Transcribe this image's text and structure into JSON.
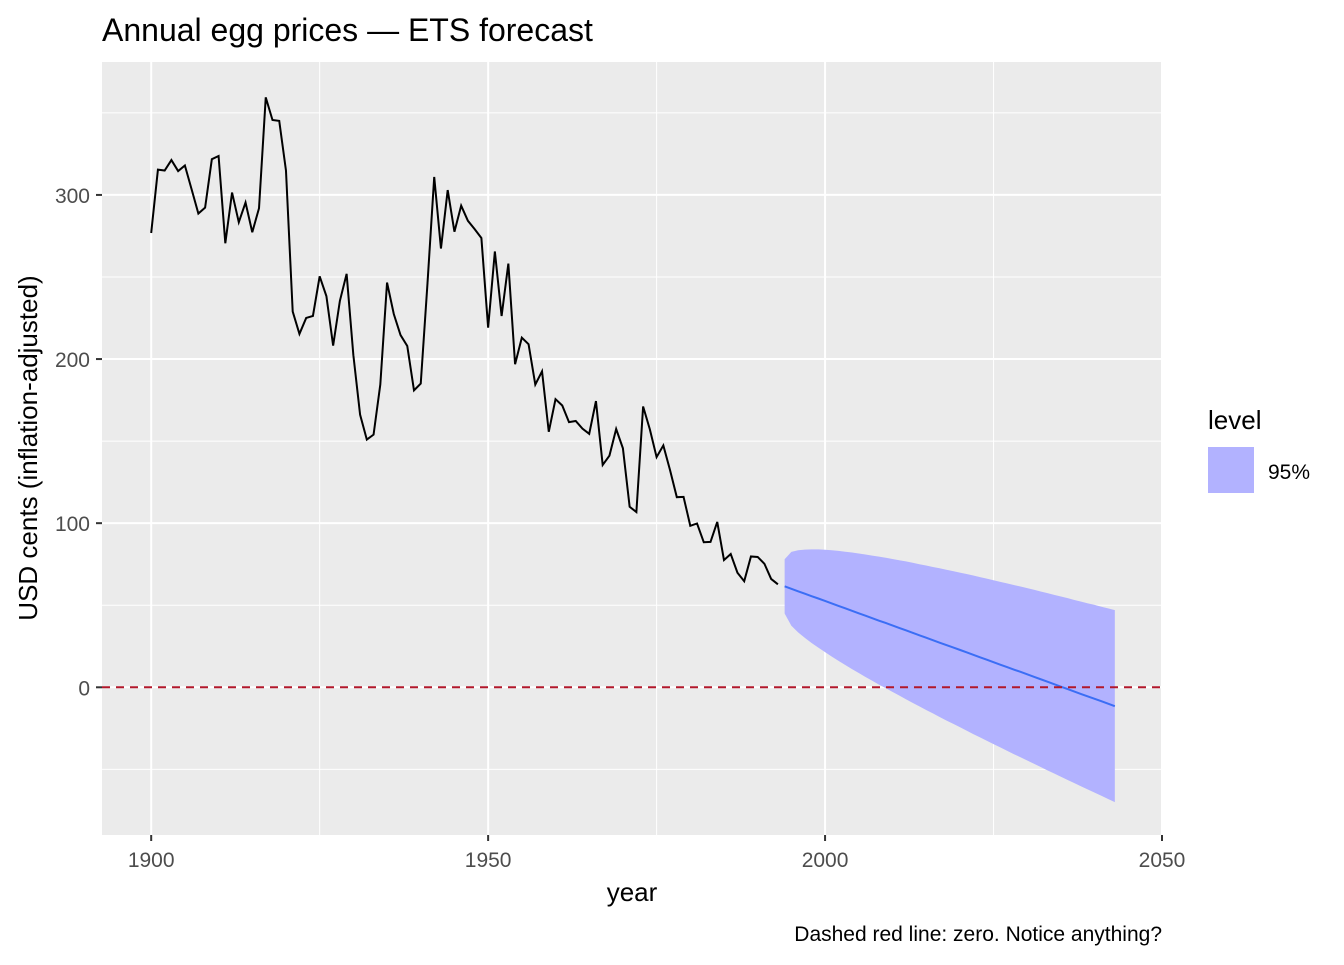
{
  "chart_data": {
    "type": "line",
    "title": "Annual egg prices — ETS forecast",
    "xlabel": "year",
    "ylabel": "USD cents (inflation-adjusted)",
    "caption": "Dashed red line: zero. Notice anything?",
    "xlim": [
      1892.7,
      2050
    ],
    "ylim": [
      -90,
      381
    ],
    "xticks": [
      1900,
      1950,
      2000,
      2050
    ],
    "yticks": [
      0,
      100,
      200,
      300
    ],
    "grid": true,
    "legend": {
      "title": "level",
      "entries": [
        "95%"
      ],
      "placement": "right"
    },
    "reference_line": {
      "y": 0,
      "style": "dashed",
      "color": "#B2182B"
    },
    "colors": {
      "history": "#000000",
      "forecast": "#3B6EF5",
      "interval": "#B2B2FF",
      "panel": "#EBEBEB",
      "grid": "#FFFFFF"
    },
    "history": {
      "start_year": 1900,
      "values": [
        276.79,
        315.42,
        314.87,
        321.25,
        314.54,
        317.92,
        303.39,
        288.65,
        292.25,
        321.76,
        323.72,
        270.54,
        301.46,
        283.39,
        295.38,
        277.27,
        291.9,
        359.46,
        345.66,
        345.12,
        314.89,
        228.92,
        215.32,
        225.06,
        226.26,
        250.41,
        238.35,
        208.19,
        235.44,
        251.91,
        202.42,
        166.12,
        150.92,
        153.95,
        184.48,
        246.62,
        227.45,
        214.61,
        207.94,
        180.91,
        185.06,
        246.05,
        310.93,
        267.34,
        302.96,
        277.59,
        293.45,
        284.24,
        279.19,
        273.76,
        219.12,
        265.52,
        226.22,
        258.18,
        196.84,
        213.04,
        209.04,
        184.45,
        192.53,
        155.67,
        175.56,
        171.72,
        161.59,
        162.26,
        157.59,
        154.44,
        174.36,
        135.5,
        141.14,
        157.39,
        145.64,
        109.99,
        106.77,
        171.1,
        157.16,
        140.27,
        147.37,
        132.27,
        115.84,
        116.02,
        98.42,
        99.82,
        88.38,
        88.59,
        100.74,
        77.5,
        81.23,
        69.8,
        64.64,
        79.72,
        79.42,
        75.26,
        66.02,
        62.75
      ]
    },
    "forecast": {
      "start_year": 1994,
      "mean": [
        61.5,
        60.0,
        58.5,
        57.0,
        55.5,
        54.1,
        52.6,
        51.1,
        49.6,
        48.1,
        46.6,
        45.1,
        43.6,
        42.1,
        40.6,
        39.2,
        37.7,
        36.2,
        34.7,
        33.2,
        31.7,
        30.2,
        28.7,
        27.2,
        25.7,
        24.3,
        22.8,
        21.3,
        19.8,
        18.3,
        16.8,
        15.3,
        13.8,
        12.3,
        10.8,
        9.4,
        7.9,
        6.4,
        4.9,
        3.4,
        1.9,
        0.4,
        -1.1,
        -2.6,
        -4.1,
        -5.6,
        -7.0,
        -8.5,
        -10.0,
        -11.5
      ],
      "lower95": [
        45.0,
        37.5,
        33.5,
        30.1,
        27.0,
        24.2,
        21.4,
        18.7,
        16.1,
        13.6,
        11.1,
        8.7,
        6.3,
        4.0,
        1.6,
        -0.5,
        -2.8,
        -5.0,
        -7.3,
        -9.5,
        -11.6,
        -13.8,
        -15.9,
        -18.1,
        -20.2,
        -22.2,
        -24.3,
        -26.4,
        -28.5,
        -30.5,
        -32.6,
        -34.6,
        -36.6,
        -38.7,
        -40.7,
        -42.6,
        -44.6,
        -46.6,
        -48.6,
        -50.6,
        -52.5,
        -54.5,
        -56.5,
        -58.4,
        -60.4,
        -62.3,
        -64.2,
        -66.1,
        -68.1,
        -70.0
      ],
      "upper95": [
        78.0,
        82.5,
        83.5,
        83.9,
        84.0,
        84.0,
        83.8,
        83.5,
        83.1,
        82.6,
        82.1,
        81.5,
        80.9,
        80.2,
        79.6,
        78.9,
        78.2,
        77.4,
        76.7,
        75.9,
        75.0,
        74.2,
        73.3,
        72.5,
        71.6,
        70.8,
        69.9,
        69.0,
        68.1,
        67.1,
        66.2,
        65.2,
        64.2,
        63.3,
        62.3,
        61.4,
        60.4,
        59.4,
        58.4,
        57.4,
        56.3,
        55.3,
        54.3,
        53.2,
        52.2,
        51.1,
        50.2,
        49.1,
        48.1,
        47.0
      ]
    }
  }
}
